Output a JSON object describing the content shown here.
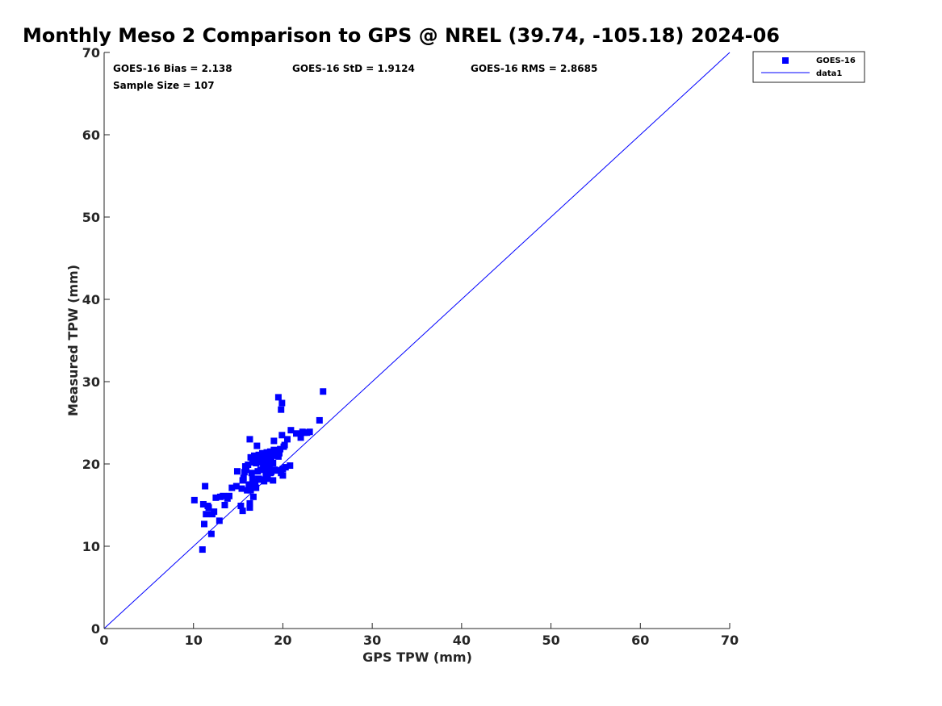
{
  "chart_data": {
    "type": "scatter",
    "title": "Monthly Meso 2 Comparison to GPS @ NREL (39.74, -105.18) 2024-06",
    "xlabel": "GPS TPW (mm)",
    "ylabel": "Measured TPW (mm)",
    "xlim": [
      0,
      70
    ],
    "ylim": [
      0,
      70
    ],
    "xticks": [
      0,
      10,
      20,
      30,
      40,
      50,
      60,
      70
    ],
    "yticks": [
      0,
      10,
      20,
      30,
      40,
      50,
      60,
      70
    ],
    "grid": false,
    "legend_position": "top-right (outside plot)",
    "stats": {
      "bias": "GOES-16 Bias = 2.138",
      "std": "GOES-16 StD = 1.9124",
      "rms": "GOES-16 RMS = 2.8685",
      "sample_size": "Sample Size = 107"
    },
    "series": [
      {
        "name": "GOES-16",
        "marker": "square",
        "color": "#0000ff",
        "points": [
          [
            10.1,
            15.6
          ],
          [
            11.0,
            9.6
          ],
          [
            11.1,
            15.1
          ],
          [
            11.2,
            12.7
          ],
          [
            11.3,
            17.3
          ],
          [
            11.4,
            13.9
          ],
          [
            11.6,
            14.9
          ],
          [
            11.7,
            14.7
          ],
          [
            12.0,
            11.5
          ],
          [
            12.1,
            13.9
          ],
          [
            12.3,
            14.2
          ],
          [
            12.5,
            15.9
          ],
          [
            12.9,
            13.1
          ],
          [
            13.0,
            16.0
          ],
          [
            13.3,
            16.1
          ],
          [
            13.5,
            15.0
          ],
          [
            13.8,
            15.8
          ],
          [
            14.0,
            16.1
          ],
          [
            14.3,
            17.1
          ],
          [
            14.8,
            17.3
          ],
          [
            14.9,
            19.1
          ],
          [
            15.3,
            14.9
          ],
          [
            15.4,
            17.0
          ],
          [
            15.5,
            18.0
          ],
          [
            15.5,
            14.3
          ],
          [
            15.6,
            18.3
          ],
          [
            15.7,
            19.0
          ],
          [
            15.8,
            19.7
          ],
          [
            15.9,
            19.3
          ],
          [
            16.0,
            16.8
          ],
          [
            16.1,
            19.9
          ],
          [
            16.2,
            17.5
          ],
          [
            16.3,
            15.2
          ],
          [
            16.3,
            14.7
          ],
          [
            16.3,
            23.0
          ],
          [
            16.4,
            16.8
          ],
          [
            16.4,
            20.8
          ],
          [
            16.5,
            18.9
          ],
          [
            16.6,
            20.2
          ],
          [
            16.7,
            16.0
          ],
          [
            16.8,
            17.5
          ],
          [
            16.8,
            21.0
          ],
          [
            16.9,
            17.8
          ],
          [
            17.0,
            20.1
          ],
          [
            17.0,
            17.1
          ],
          [
            17.1,
            22.2
          ],
          [
            17.1,
            20.6
          ],
          [
            17.2,
            19.1
          ],
          [
            17.3,
            18.2
          ],
          [
            17.3,
            21.1
          ],
          [
            17.4,
            20.9
          ],
          [
            17.5,
            19.3
          ],
          [
            17.6,
            18.1
          ],
          [
            17.6,
            20.2
          ],
          [
            17.7,
            21.3
          ],
          [
            17.8,
            19.7
          ],
          [
            17.8,
            20.6
          ],
          [
            17.9,
            17.9
          ],
          [
            18.0,
            21.0
          ],
          [
            18.0,
            20.0
          ],
          [
            18.1,
            18.6
          ],
          [
            18.1,
            19.1
          ],
          [
            18.2,
            21.4
          ],
          [
            18.2,
            20.3
          ],
          [
            18.3,
            18.2
          ],
          [
            18.3,
            20.9
          ],
          [
            18.4,
            19.4
          ],
          [
            18.5,
            21.2
          ],
          [
            18.5,
            20.0
          ],
          [
            18.6,
            18.9
          ],
          [
            18.6,
            21.5
          ],
          [
            18.7,
            20.4
          ],
          [
            18.7,
            19.0
          ],
          [
            18.8,
            21.1
          ],
          [
            18.9,
            18.0
          ],
          [
            18.9,
            20.1
          ],
          [
            19.0,
            22.8
          ],
          [
            19.0,
            21.7
          ],
          [
            19.1,
            19.3
          ],
          [
            19.2,
            21.0
          ],
          [
            19.3,
            21.6
          ],
          [
            19.4,
            19.2
          ],
          [
            19.5,
            28.1
          ],
          [
            19.5,
            20.9
          ],
          [
            19.6,
            21.3
          ],
          [
            19.7,
            21.8
          ],
          [
            19.8,
            26.6
          ],
          [
            19.8,
            18.9
          ],
          [
            19.9,
            23.5
          ],
          [
            19.9,
            27.4
          ],
          [
            20.0,
            18.6
          ],
          [
            20.0,
            19.4
          ],
          [
            20.1,
            22.1
          ],
          [
            20.2,
            22.3
          ],
          [
            20.3,
            19.6
          ],
          [
            20.5,
            23.0
          ],
          [
            20.8,
            19.8
          ],
          [
            20.9,
            24.1
          ],
          [
            21.5,
            23.7
          ],
          [
            22.0,
            23.2
          ],
          [
            22.2,
            23.9
          ],
          [
            22.4,
            23.8
          ],
          [
            22.7,
            23.8
          ],
          [
            23.0,
            23.9
          ],
          [
            24.1,
            25.3
          ],
          [
            24.5,
            28.8
          ],
          [
            16.6,
            18.2
          ]
        ]
      },
      {
        "name": "data1",
        "type": "line",
        "color": "#0000ff",
        "points": [
          [
            0,
            0
          ],
          [
            70,
            70
          ]
        ]
      }
    ]
  }
}
